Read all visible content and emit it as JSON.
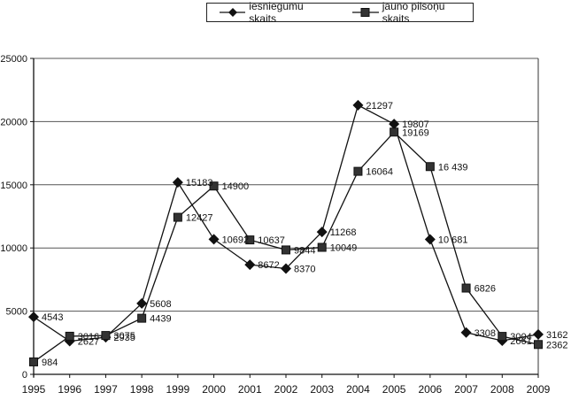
{
  "chart_data": {
    "type": "line",
    "title": "",
    "xlabel": "",
    "ylabel": "",
    "x": [
      1995,
      1996,
      1997,
      1998,
      1999,
      2000,
      2001,
      2002,
      2003,
      2004,
      2005,
      2006,
      2007,
      2008,
      2009
    ],
    "series": [
      {
        "name": "iesniegumu skaits",
        "marker": "diamond",
        "values": [
          4543,
          2627,
          2935,
          5608,
          15183,
          10692,
          8672,
          8370,
          11268,
          21297,
          19807,
          10681,
          3308,
          2661,
          3162
        ],
        "labels": [
          "4543",
          "2627",
          "2935",
          "5608",
          "15183",
          "10692",
          "8672",
          "8370",
          "11268",
          "21297",
          "19807",
          "10 681",
          "3308",
          "2661",
          "3162"
        ]
      },
      {
        "name": "jauno pilsoņu skaits",
        "marker": "square",
        "values": [
          984,
          3016,
          3075,
          4439,
          12427,
          14900,
          10637,
          9844,
          10049,
          16064,
          19169,
          16439,
          6826,
          3004,
          2362
        ],
        "labels": [
          "984",
          "3016",
          "3075",
          "4439",
          "12427",
          "14900",
          "10637",
          "9844",
          "10049",
          "16064",
          "19169",
          "16 439",
          "6826",
          "3004",
          "2362"
        ]
      }
    ],
    "ylim": [
      0,
      25000
    ],
    "yticks": [
      0,
      5000,
      10000,
      15000,
      20000,
      25000
    ],
    "grid": "horizontal",
    "legend_position": "top-center"
  },
  "legend": {
    "items": [
      {
        "label": "iesniegumu skaits",
        "marker": "diamond"
      },
      {
        "label": "jauno pilsoņu skaits",
        "marker": "square"
      }
    ]
  },
  "colors": {
    "line": "#111111",
    "grid": "#555555",
    "square_fill": "#333333"
  }
}
